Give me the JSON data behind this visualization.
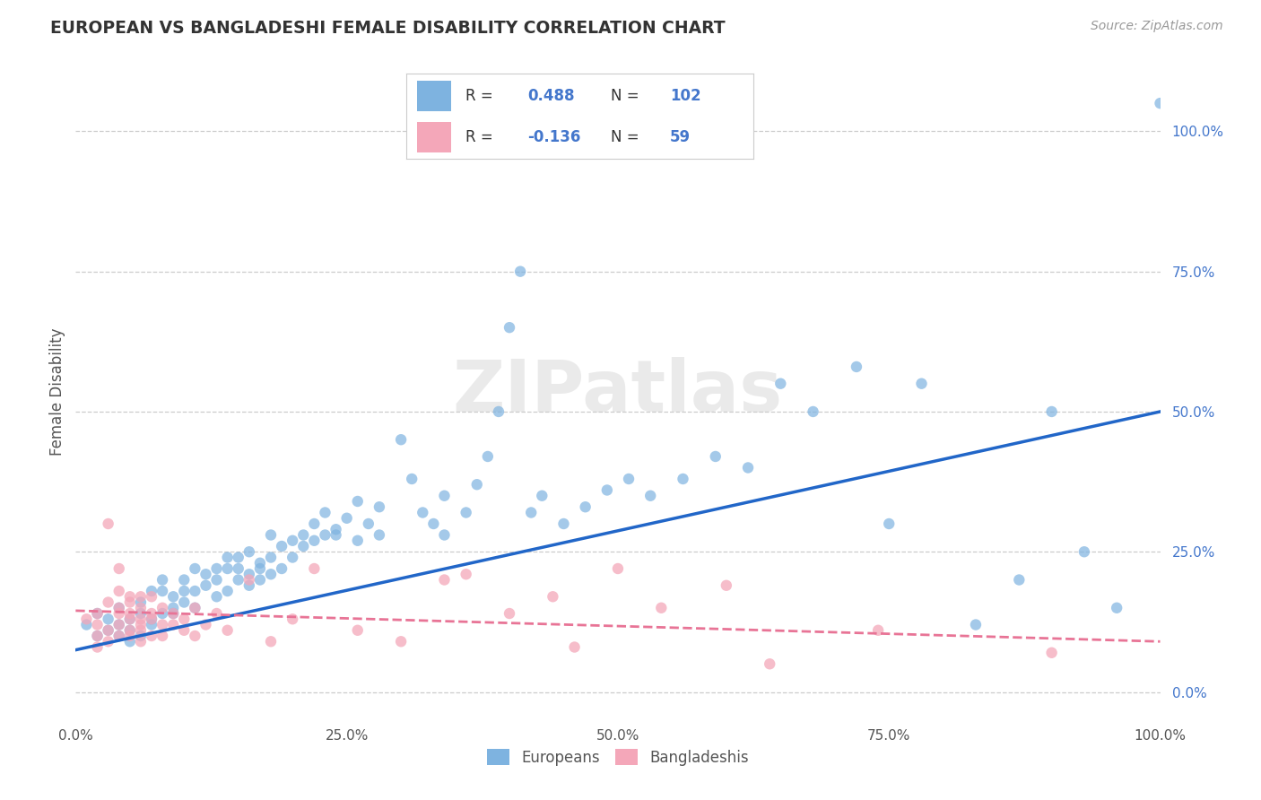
{
  "title": "EUROPEAN VS BANGLADESHI FEMALE DISABILITY CORRELATION CHART",
  "source": "Source: ZipAtlas.com",
  "ylabel": "Female Disability",
  "xlim": [
    0.0,
    1.0
  ],
  "ylim": [
    -0.05,
    1.12
  ],
  "x_ticks": [
    0.0,
    0.25,
    0.5,
    0.75,
    1.0
  ],
  "x_tick_labels": [
    "0.0%",
    "25.0%",
    "50.0%",
    "75.0%",
    "100.0%"
  ],
  "y_tick_labels_right": [
    "0.0%",
    "25.0%",
    "50.0%",
    "75.0%",
    "100.0%"
  ],
  "y_ticks_right": [
    0.0,
    0.25,
    0.5,
    0.75,
    1.0
  ],
  "european_color": "#7eb3e0",
  "bangladeshi_color": "#f4a7b9",
  "trend_european_color": "#2166c8",
  "trend_bangladeshi_color": "#e87496",
  "background_color": "#ffffff",
  "grid_color": "#cccccc",
  "title_color": "#333333",
  "label_color": "#555555",
  "source_color": "#999999",
  "legend_value_color": "#4477cc",
  "legend_label_color": "#333333",
  "right_tick_color": "#4477cc",
  "watermark": "ZIPatlas",
  "european_trend_start_x": 0.0,
  "european_trend_start_y": 0.075,
  "european_trend_end_x": 1.0,
  "european_trend_end_y": 0.5,
  "bangladeshi_trend_start_x": 0.0,
  "bangladeshi_trend_start_y": 0.145,
  "bangladeshi_trend_end_x": 1.0,
  "bangladeshi_trend_end_y": 0.09,
  "europeans_legend": "Europeans",
  "bangladeshis_legend": "Bangladeshis",
  "eu_points": [
    [
      0.01,
      0.12
    ],
    [
      0.02,
      0.1
    ],
    [
      0.02,
      0.14
    ],
    [
      0.03,
      0.11
    ],
    [
      0.03,
      0.13
    ],
    [
      0.04,
      0.1
    ],
    [
      0.04,
      0.12
    ],
    [
      0.04,
      0.15
    ],
    [
      0.05,
      0.09
    ],
    [
      0.05,
      0.13
    ],
    [
      0.05,
      0.11
    ],
    [
      0.06,
      0.14
    ],
    [
      0.06,
      0.1
    ],
    [
      0.06,
      0.16
    ],
    [
      0.07,
      0.12
    ],
    [
      0.07,
      0.18
    ],
    [
      0.07,
      0.13
    ],
    [
      0.08,
      0.2
    ],
    [
      0.08,
      0.14
    ],
    [
      0.08,
      0.18
    ],
    [
      0.09,
      0.15
    ],
    [
      0.09,
      0.17
    ],
    [
      0.09,
      0.14
    ],
    [
      0.1,
      0.16
    ],
    [
      0.1,
      0.2
    ],
    [
      0.1,
      0.18
    ],
    [
      0.11,
      0.22
    ],
    [
      0.11,
      0.15
    ],
    [
      0.11,
      0.18
    ],
    [
      0.12,
      0.21
    ],
    [
      0.12,
      0.19
    ],
    [
      0.13,
      0.22
    ],
    [
      0.13,
      0.17
    ],
    [
      0.13,
      0.2
    ],
    [
      0.14,
      0.24
    ],
    [
      0.14,
      0.18
    ],
    [
      0.14,
      0.22
    ],
    [
      0.15,
      0.2
    ],
    [
      0.15,
      0.24
    ],
    [
      0.15,
      0.22
    ],
    [
      0.16,
      0.19
    ],
    [
      0.16,
      0.21
    ],
    [
      0.16,
      0.25
    ],
    [
      0.17,
      0.23
    ],
    [
      0.17,
      0.2
    ],
    [
      0.17,
      0.22
    ],
    [
      0.18,
      0.28
    ],
    [
      0.18,
      0.24
    ],
    [
      0.18,
      0.21
    ],
    [
      0.19,
      0.26
    ],
    [
      0.19,
      0.22
    ],
    [
      0.2,
      0.24
    ],
    [
      0.2,
      0.27
    ],
    [
      0.21,
      0.26
    ],
    [
      0.21,
      0.28
    ],
    [
      0.22,
      0.27
    ],
    [
      0.22,
      0.3
    ],
    [
      0.23,
      0.28
    ],
    [
      0.23,
      0.32
    ],
    [
      0.24,
      0.29
    ],
    [
      0.24,
      0.28
    ],
    [
      0.25,
      0.31
    ],
    [
      0.26,
      0.34
    ],
    [
      0.26,
      0.27
    ],
    [
      0.27,
      0.3
    ],
    [
      0.28,
      0.33
    ],
    [
      0.28,
      0.28
    ],
    [
      0.3,
      0.45
    ],
    [
      0.31,
      0.38
    ],
    [
      0.32,
      0.32
    ],
    [
      0.33,
      0.3
    ],
    [
      0.34,
      0.35
    ],
    [
      0.34,
      0.28
    ],
    [
      0.36,
      0.32
    ],
    [
      0.37,
      0.37
    ],
    [
      0.38,
      0.42
    ],
    [
      0.39,
      0.5
    ],
    [
      0.4,
      0.65
    ],
    [
      0.41,
      0.75
    ],
    [
      0.42,
      0.32
    ],
    [
      0.43,
      0.35
    ],
    [
      0.45,
      0.3
    ],
    [
      0.47,
      0.33
    ],
    [
      0.49,
      0.36
    ],
    [
      0.51,
      0.38
    ],
    [
      0.53,
      0.35
    ],
    [
      0.56,
      0.38
    ],
    [
      0.59,
      0.42
    ],
    [
      0.62,
      0.4
    ],
    [
      0.65,
      0.55
    ],
    [
      0.68,
      0.5
    ],
    [
      0.72,
      0.58
    ],
    [
      0.75,
      0.3
    ],
    [
      0.78,
      0.55
    ],
    [
      0.83,
      0.12
    ],
    [
      0.87,
      0.2
    ],
    [
      0.9,
      0.5
    ],
    [
      0.93,
      0.25
    ],
    [
      0.96,
      0.15
    ],
    [
      1.0,
      1.05
    ]
  ],
  "bd_points": [
    [
      0.01,
      0.13
    ],
    [
      0.02,
      0.1
    ],
    [
      0.02,
      0.14
    ],
    [
      0.02,
      0.08
    ],
    [
      0.02,
      0.12
    ],
    [
      0.03,
      0.11
    ],
    [
      0.03,
      0.3
    ],
    [
      0.03,
      0.16
    ],
    [
      0.03,
      0.09
    ],
    [
      0.04,
      0.14
    ],
    [
      0.04,
      0.18
    ],
    [
      0.04,
      0.12
    ],
    [
      0.04,
      0.15
    ],
    [
      0.04,
      0.1
    ],
    [
      0.04,
      0.22
    ],
    [
      0.05,
      0.13
    ],
    [
      0.05,
      0.17
    ],
    [
      0.05,
      0.11
    ],
    [
      0.05,
      0.14
    ],
    [
      0.05,
      0.1
    ],
    [
      0.05,
      0.16
    ],
    [
      0.06,
      0.12
    ],
    [
      0.06,
      0.15
    ],
    [
      0.06,
      0.09
    ],
    [
      0.06,
      0.13
    ],
    [
      0.06,
      0.17
    ],
    [
      0.06,
      0.11
    ],
    [
      0.07,
      0.14
    ],
    [
      0.07,
      0.1
    ],
    [
      0.07,
      0.13
    ],
    [
      0.07,
      0.17
    ],
    [
      0.08,
      0.12
    ],
    [
      0.08,
      0.1
    ],
    [
      0.08,
      0.15
    ],
    [
      0.09,
      0.12
    ],
    [
      0.09,
      0.14
    ],
    [
      0.1,
      0.11
    ],
    [
      0.1,
      0.13
    ],
    [
      0.11,
      0.1
    ],
    [
      0.11,
      0.15
    ],
    [
      0.12,
      0.12
    ],
    [
      0.13,
      0.14
    ],
    [
      0.14,
      0.11
    ],
    [
      0.16,
      0.2
    ],
    [
      0.18,
      0.09
    ],
    [
      0.2,
      0.13
    ],
    [
      0.22,
      0.22
    ],
    [
      0.26,
      0.11
    ],
    [
      0.3,
      0.09
    ],
    [
      0.34,
      0.2
    ],
    [
      0.36,
      0.21
    ],
    [
      0.4,
      0.14
    ],
    [
      0.44,
      0.17
    ],
    [
      0.46,
      0.08
    ],
    [
      0.5,
      0.22
    ],
    [
      0.54,
      0.15
    ],
    [
      0.6,
      0.19
    ],
    [
      0.64,
      0.05
    ],
    [
      0.74,
      0.11
    ],
    [
      0.9,
      0.07
    ]
  ]
}
